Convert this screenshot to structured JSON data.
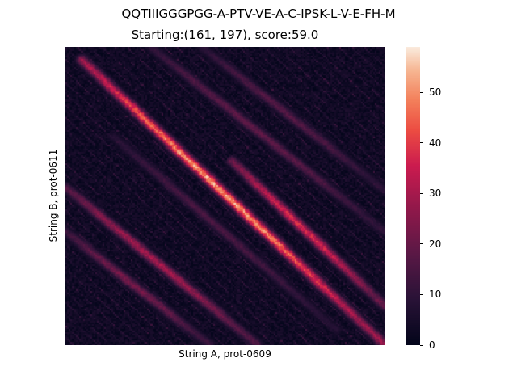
{
  "figure": {
    "suptitle": "QQTIIIGGGPGG-A-PTV-VE-A-C-IPSK-L-V-E-FH-M",
    "title": "Starting:(161, 197), score:59.0"
  },
  "chart_data": {
    "type": "heatmap",
    "title": "Starting:(161, 197), score:59.0",
    "xlabel": "String A, prot-0609",
    "ylabel": "String B, prot-0611",
    "x_ticks": [],
    "y_ticks": [],
    "colormap": "rocket",
    "colorbar": {
      "range": [
        0,
        59
      ],
      "ticks": [
        0,
        10,
        20,
        30,
        40,
        50
      ],
      "tick_labels": [
        "0",
        "10",
        "20",
        "30",
        "40",
        "50"
      ]
    },
    "grid": false,
    "diagonal_streaks": [
      {
        "from": [
          0.05,
          0.04
        ],
        "to": [
          1.0,
          1.0
        ],
        "peak": 55
      },
      {
        "from": [
          0.52,
          0.38
        ],
        "to": [
          1.0,
          0.87
        ],
        "peak": 40
      },
      {
        "from": [
          0.0,
          0.47
        ],
        "to": [
          0.6,
          1.0
        ],
        "peak": 32
      },
      {
        "from": [
          0.27,
          0.0
        ],
        "to": [
          1.0,
          0.62
        ],
        "peak": 20
      },
      {
        "from": [
          0.43,
          0.0
        ],
        "to": [
          1.0,
          0.48
        ],
        "peak": 18
      },
      {
        "from": [
          0.0,
          0.62
        ],
        "to": [
          0.45,
          1.0
        ],
        "peak": 24
      },
      {
        "from": [
          0.15,
          0.3
        ],
        "to": [
          0.85,
          0.95
        ],
        "peak": 16
      }
    ]
  }
}
